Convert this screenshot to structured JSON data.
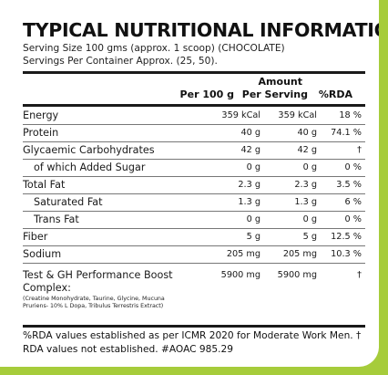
{
  "title": "TYPICAL NUTRITIONAL INFORMATION",
  "serving": {
    "size": "Serving Size 100 gms (approx. 1 scoop) (CHOCOLATE)",
    "per_container": "Servings Per Container Approx. (25, 50)."
  },
  "columns": {
    "per100": "Per 100 g",
    "amount": "Amount",
    "per_serving": "Per Serving",
    "rda": "%RDA"
  },
  "rows": [
    {
      "label": "Energy",
      "per100": "359 kCal",
      "serving": "359 kCal",
      "rda": "18 %"
    },
    {
      "label": "Protein",
      "per100": "40 g",
      "serving": "40 g",
      "rda": "74.1 %"
    },
    {
      "label": "Glycaemic Carbohydrates",
      "per100": "42 g",
      "serving": "42 g",
      "rda": "†"
    },
    {
      "label": "of which Added Sugar",
      "per100": "0 g",
      "serving": "0 g",
      "rda": "0 %"
    },
    {
      "label": "Total Fat",
      "per100": "2.3 g",
      "serving": "2.3 g",
      "rda": "3.5 %"
    },
    {
      "label": "Saturated Fat",
      "per100": "1.3 g",
      "serving": "1.3 g",
      "rda": "6 %"
    },
    {
      "label": "Trans Fat",
      "per100": "0 g",
      "serving": "0 g",
      "rda": "0 %"
    },
    {
      "label": "Fiber",
      "per100": "5 g",
      "serving": "5 g",
      "rda": "12.5 %"
    },
    {
      "label": "Sodium",
      "per100": "205 mg",
      "serving": "205 mg",
      "rda": "10.3 %"
    }
  ],
  "boost": {
    "label": "Test & GH Performance Boost Complex:",
    "ingredients": "(Creatine Monohydrate, Taurine, Glycine, Mucuna Pruriens- 10% L Dopa, Tribulus Terrestris Extract)",
    "per100": "5900 mg",
    "serving": "5900 mg",
    "rda": "†"
  },
  "footer": "%RDA values established as per ICMR 2020 for Moderate Work Men. † RDA values not established.  #AOAC 985.29",
  "colors": {
    "background": "#a6cc3b",
    "panel": "#ffffff",
    "text": "#1a1a1a"
  }
}
